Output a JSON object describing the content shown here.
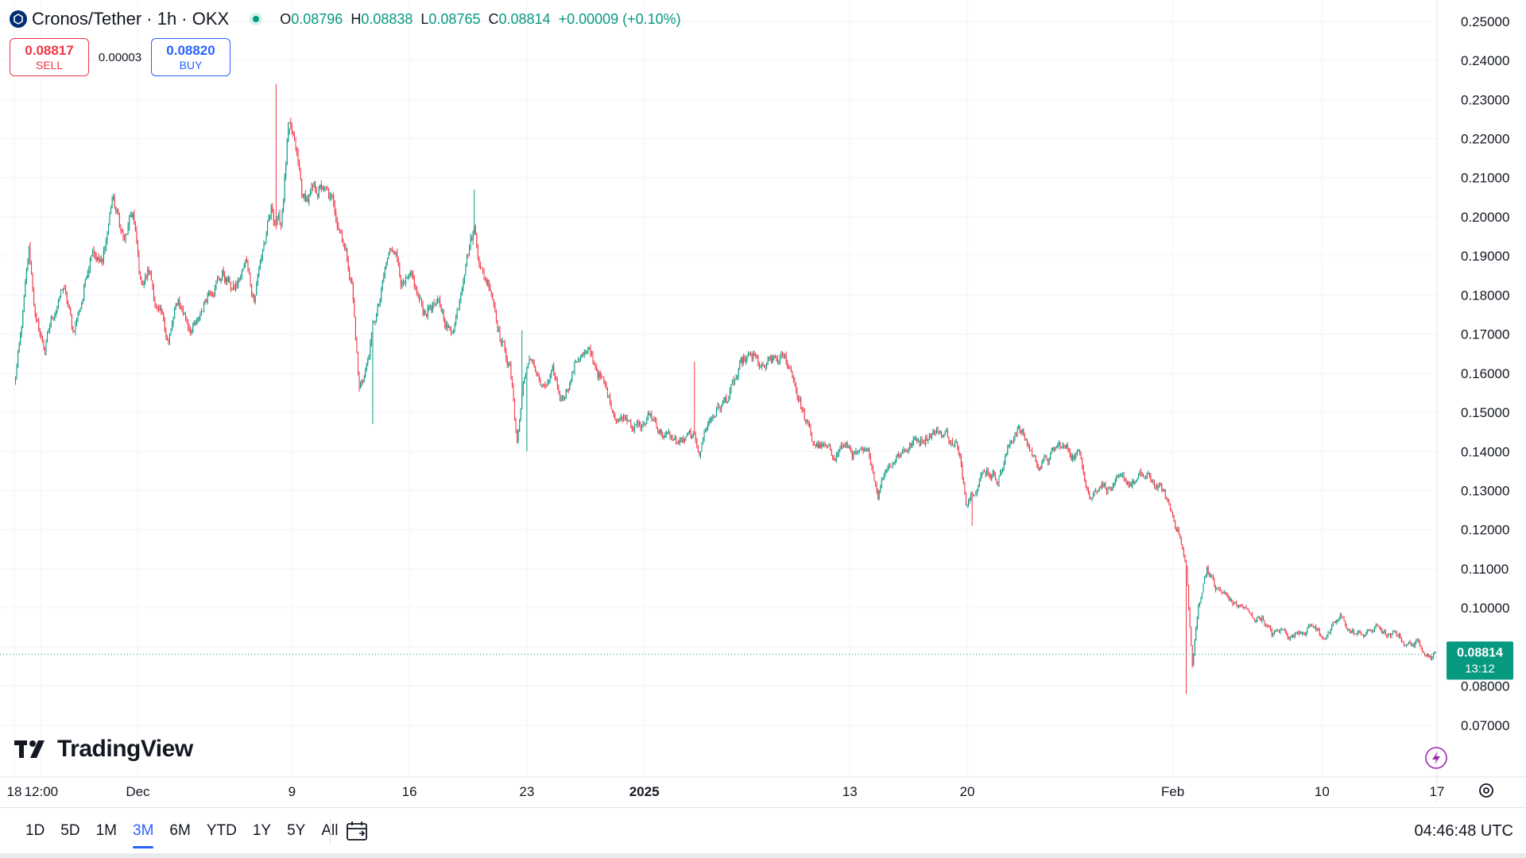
{
  "header": {
    "symbol_title": "Cronos/Tether · 1h · OKX",
    "ohlc": {
      "o_label": "O",
      "o_value": "0.08796",
      "h_label": "H",
      "h_value": "0.08838",
      "l_label": "L",
      "l_value": "0.08765",
      "c_label": "C",
      "c_value": "0.08814",
      "change": "+0.00009 (+0.10%)"
    }
  },
  "trade": {
    "sell_price": "0.08817",
    "sell_label": "SELL",
    "spread": "0.00003",
    "buy_price": "0.08820",
    "buy_label": "BUY"
  },
  "brand": {
    "name": "TradingView"
  },
  "price_tag": {
    "price": "0.08814",
    "countdown": "13:12"
  },
  "timeframes": [
    "1D",
    "5D",
    "1M",
    "3M",
    "6M",
    "YTD",
    "1Y",
    "5Y",
    "All"
  ],
  "active_timeframe": "3M",
  "clock": "04:46:48 UTC",
  "colors": {
    "up": "#089981",
    "down": "#f23645",
    "accent": "#2962ff",
    "tag": "#089981"
  },
  "chart_data": {
    "type": "candlestick",
    "title": "Cronos/Tether · 1h · OKX",
    "interval": "1h",
    "y_axis_labels": [
      "0.25000",
      "0.24000",
      "0.23000",
      "0.22000",
      "0.21000",
      "0.20000",
      "0.19000",
      "0.18000",
      "0.17000",
      "0.16000",
      "0.15000",
      "0.14000",
      "0.13000",
      "0.12000",
      "0.11000",
      "0.10000",
      "0.09000",
      "0.08000",
      "0.07000"
    ],
    "ylim": [
      0.0655,
      0.2524
    ],
    "x_tick_labels": [
      "18",
      "12:00",
      "Dec",
      "9",
      "16",
      "23",
      "2025",
      "13",
      "20",
      "Feb",
      "10",
      "17"
    ],
    "x_tick_index": [
      0,
      22,
      101,
      227,
      323,
      419,
      515,
      683,
      779,
      947,
      1069,
      1163
    ],
    "total_candles": 1163,
    "last_price": 0.08814,
    "price_path": [
      [
        0,
        0.157
      ],
      [
        5,
        0.168
      ],
      [
        12,
        0.19
      ],
      [
        18,
        0.172
      ],
      [
        25,
        0.166
      ],
      [
        32,
        0.175
      ],
      [
        40,
        0.182
      ],
      [
        48,
        0.17
      ],
      [
        56,
        0.18
      ],
      [
        64,
        0.195
      ],
      [
        72,
        0.188
      ],
      [
        80,
        0.205
      ],
      [
        90,
        0.193
      ],
      [
        97,
        0.2
      ],
      [
        103,
        0.182
      ],
      [
        110,
        0.186
      ],
      [
        118,
        0.175
      ],
      [
        126,
        0.168
      ],
      [
        134,
        0.178
      ],
      [
        142,
        0.173
      ],
      [
        150,
        0.172
      ],
      [
        160,
        0.183
      ],
      [
        170,
        0.186
      ],
      [
        180,
        0.181
      ],
      [
        190,
        0.188
      ],
      [
        196,
        0.18
      ],
      [
        203,
        0.192
      ],
      [
        210,
        0.2
      ],
      [
        218,
        0.198
      ],
      [
        224,
        0.222
      ],
      [
        230,
        0.215
      ],
      [
        236,
        0.203
      ],
      [
        244,
        0.205
      ],
      [
        252,
        0.207
      ],
      [
        260,
        0.202
      ],
      [
        268,
        0.197
      ],
      [
        276,
        0.184
      ],
      [
        282,
        0.156
      ],
      [
        288,
        0.162
      ],
      [
        293,
        0.171
      ],
      [
        299,
        0.178
      ],
      [
        305,
        0.188
      ],
      [
        311,
        0.193
      ],
      [
        318,
        0.183
      ],
      [
        326,
        0.181
      ],
      [
        334,
        0.175
      ],
      [
        342,
        0.178
      ],
      [
        350,
        0.175
      ],
      [
        357,
        0.17
      ],
      [
        363,
        0.178
      ],
      [
        369,
        0.192
      ],
      [
        376,
        0.198
      ],
      [
        383,
        0.186
      ],
      [
        390,
        0.183
      ],
      [
        398,
        0.17
      ],
      [
        405,
        0.162
      ],
      [
        411,
        0.143
      ],
      [
        417,
        0.16
      ],
      [
        424,
        0.163
      ],
      [
        432,
        0.155
      ],
      [
        440,
        0.158
      ],
      [
        447,
        0.153
      ],
      [
        455,
        0.16
      ],
      [
        463,
        0.166
      ],
      [
        470,
        0.164
      ],
      [
        478,
        0.16
      ],
      [
        486,
        0.153
      ],
      [
        494,
        0.149
      ],
      [
        503,
        0.15
      ],
      [
        512,
        0.146
      ],
      [
        520,
        0.149
      ],
      [
        528,
        0.146
      ],
      [
        536,
        0.143
      ],
      [
        545,
        0.142
      ],
      [
        552,
        0.143
      ],
      [
        560,
        0.14
      ],
      [
        566,
        0.147
      ],
      [
        574,
        0.151
      ],
      [
        582,
        0.153
      ],
      [
        590,
        0.158
      ],
      [
        597,
        0.162
      ],
      [
        604,
        0.163
      ],
      [
        612,
        0.16
      ],
      [
        620,
        0.162
      ],
      [
        628,
        0.163
      ],
      [
        636,
        0.16
      ],
      [
        644,
        0.151
      ],
      [
        652,
        0.142
      ],
      [
        660,
        0.141
      ],
      [
        668,
        0.138
      ],
      [
        676,
        0.142
      ],
      [
        684,
        0.14
      ],
      [
        692,
        0.138
      ],
      [
        700,
        0.137
      ],
      [
        706,
        0.13
      ],
      [
        713,
        0.137
      ],
      [
        722,
        0.14
      ],
      [
        731,
        0.142
      ],
      [
        740,
        0.143
      ],
      [
        750,
        0.146
      ],
      [
        760,
        0.145
      ],
      [
        770,
        0.142
      ],
      [
        778,
        0.128
      ],
      [
        786,
        0.133
      ],
      [
        795,
        0.136
      ],
      [
        804,
        0.134
      ],
      [
        812,
        0.14
      ],
      [
        820,
        0.147
      ],
      [
        828,
        0.142
      ],
      [
        836,
        0.137
      ],
      [
        845,
        0.138
      ],
      [
        854,
        0.141
      ],
      [
        862,
        0.14
      ],
      [
        872,
        0.139
      ],
      [
        880,
        0.129
      ],
      [
        888,
        0.133
      ],
      [
        896,
        0.131
      ],
      [
        906,
        0.131
      ],
      [
        914,
        0.132
      ],
      [
        922,
        0.133
      ],
      [
        930,
        0.132
      ],
      [
        938,
        0.13
      ],
      [
        945,
        0.125
      ],
      [
        952,
        0.12
      ],
      [
        958,
        0.11
      ],
      [
        963,
        0.085
      ],
      [
        968,
        0.1
      ],
      [
        975,
        0.111
      ],
      [
        982,
        0.105
      ],
      [
        990,
        0.103
      ],
      [
        997,
        0.101
      ],
      [
        1005,
        0.1
      ],
      [
        1012,
        0.097
      ],
      [
        1020,
        0.098
      ],
      [
        1028,
        0.093
      ],
      [
        1036,
        0.094
      ],
      [
        1045,
        0.093
      ],
      [
        1053,
        0.095
      ],
      [
        1061,
        0.096
      ],
      [
        1068,
        0.093
      ],
      [
        1076,
        0.094
      ],
      [
        1084,
        0.097
      ],
      [
        1092,
        0.094
      ],
      [
        1100,
        0.093
      ],
      [
        1108,
        0.094
      ],
      [
        1116,
        0.095
      ],
      [
        1124,
        0.092
      ],
      [
        1131,
        0.093
      ],
      [
        1138,
        0.091
      ],
      [
        1145,
        0.091
      ],
      [
        1152,
        0.09
      ],
      [
        1158,
        0.0885
      ],
      [
        1163,
        0.0881
      ]
    ],
    "spikes": [
      [
        214,
        "high",
        0.234
      ],
      [
        225,
        "high",
        0.221
      ],
      [
        293,
        "low",
        0.147
      ],
      [
        419,
        "low",
        0.14
      ],
      [
        415,
        "high",
        0.171
      ],
      [
        556,
        "high",
        0.163
      ],
      [
        376,
        "high",
        0.207
      ],
      [
        958,
        "low",
        0.078
      ],
      [
        783,
        "low",
        0.121
      ]
    ]
  }
}
